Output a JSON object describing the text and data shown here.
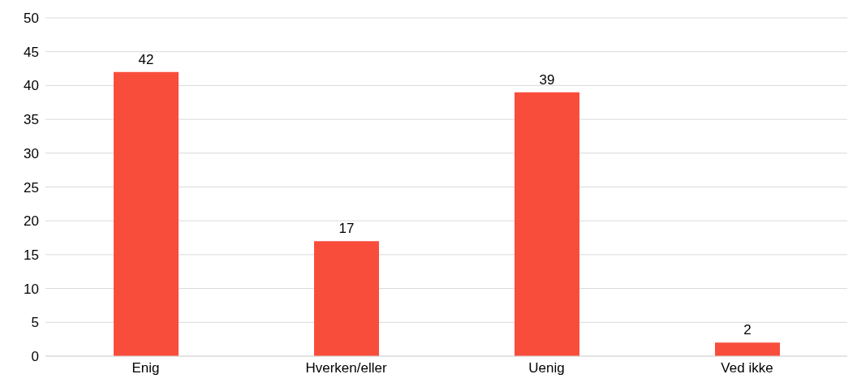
{
  "chart_data": {
    "type": "bar",
    "categories": [
      "Enig",
      "Hverken/eller",
      "Uenig",
      "Ved ikke"
    ],
    "values": [
      42,
      17,
      39,
      2
    ],
    "color": "#f94d3c",
    "ylim": [
      0,
      50
    ],
    "yticks": [
      0,
      5,
      10,
      15,
      20,
      25,
      30,
      35,
      40,
      45,
      50
    ],
    "grid": "y",
    "data_labels": true
  }
}
